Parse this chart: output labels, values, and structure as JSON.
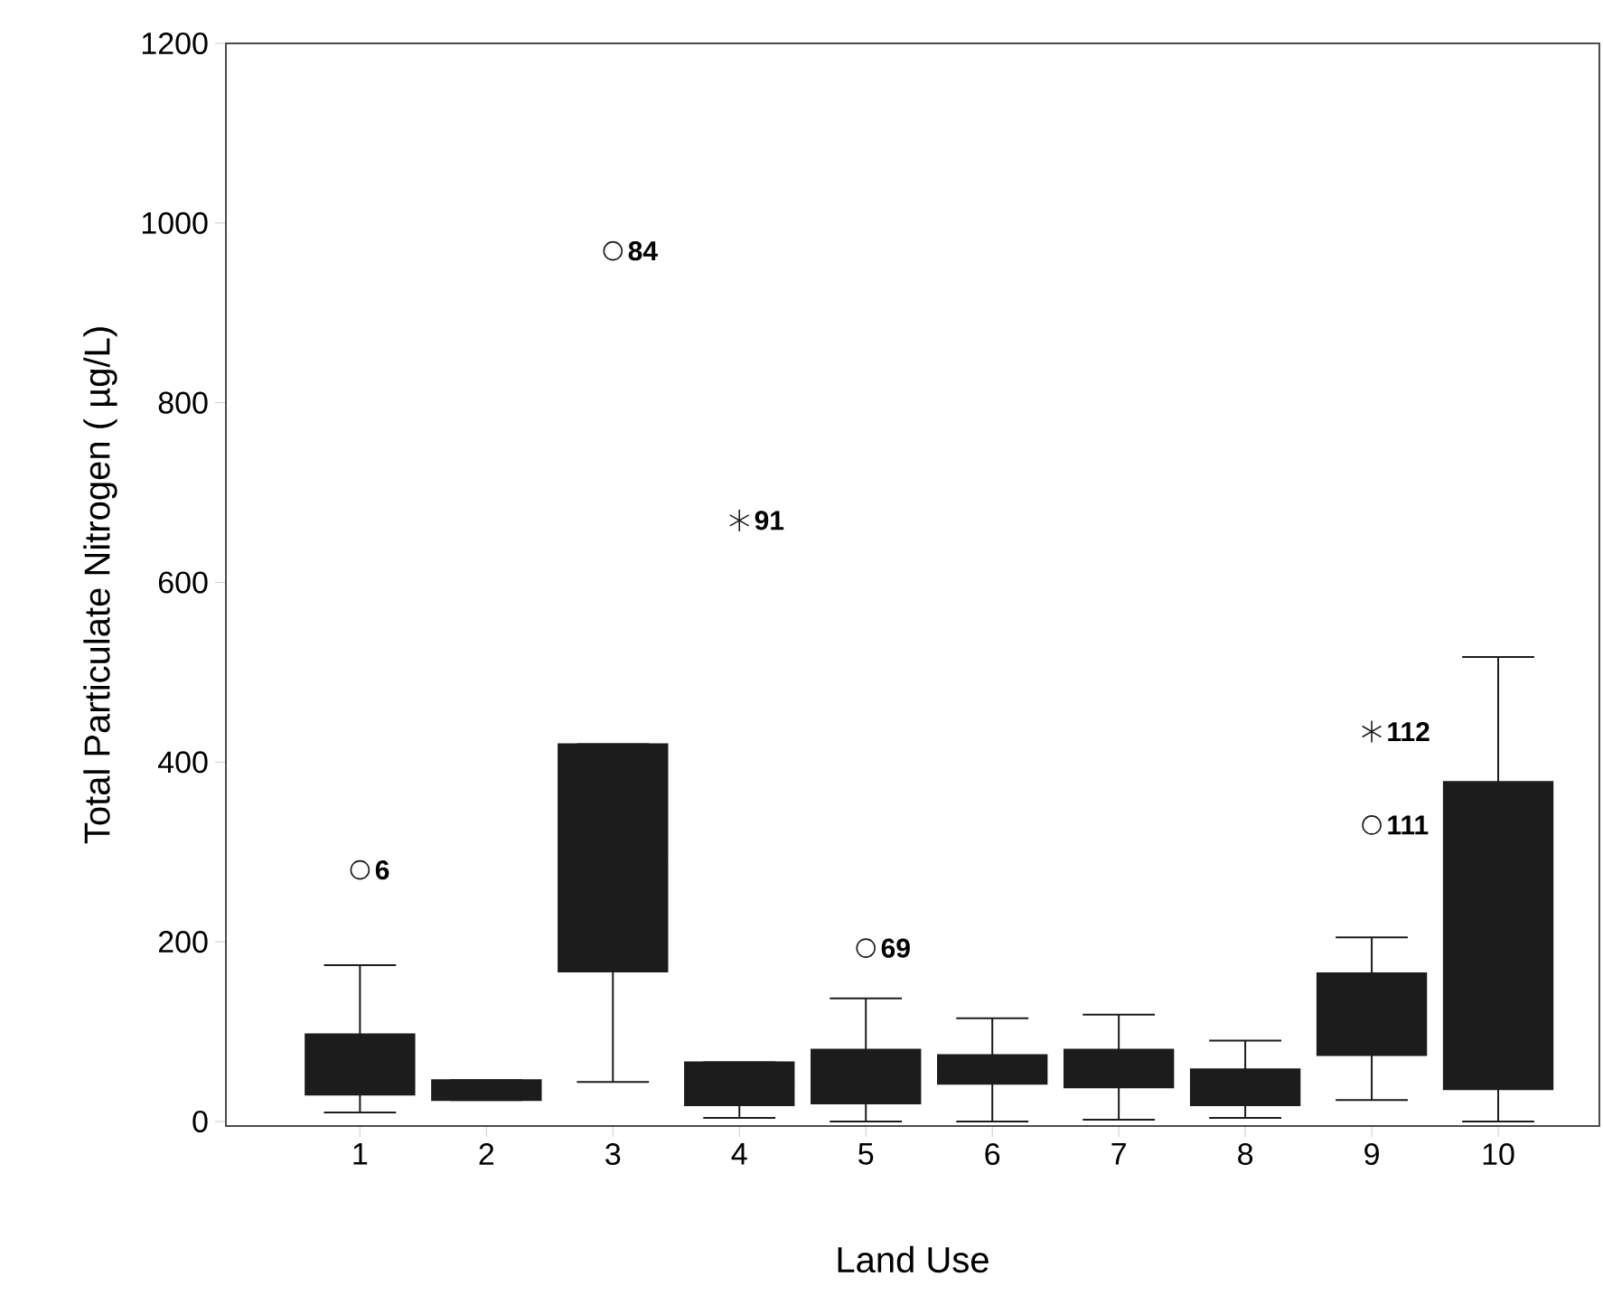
{
  "chart_data": {
    "type": "box",
    "xlabel": "Land Use",
    "ylabel": "Total Particulate Nitrogen ( µg/L)",
    "categories": [
      "1",
      "2",
      "3",
      "4",
      "5",
      "6",
      "7",
      "8",
      "9",
      "10"
    ],
    "color": "#1c1c1c",
    "boxes": [
      {
        "low": 10,
        "q1": 30,
        "median": 60,
        "q3": 97,
        "high": 174
      },
      {
        "low": 24,
        "q1": 24,
        "median": 35,
        "q3": 46,
        "high": 46
      },
      {
        "low": 44,
        "q1": 167,
        "median": 290,
        "q3": 420,
        "high": 420
      },
      {
        "low": 4,
        "q1": 18,
        "median": 40,
        "q3": 66,
        "high": 66
      },
      {
        "low": 0,
        "q1": 20,
        "median": 50,
        "q3": 80,
        "high": 137
      },
      {
        "low": 0,
        "q1": 42,
        "median": 58,
        "q3": 74,
        "high": 115
      },
      {
        "low": 2,
        "q1": 38,
        "median": 60,
        "q3": 80,
        "high": 119
      },
      {
        "low": 4,
        "q1": 18,
        "median": 38,
        "q3": 58,
        "high": 90
      },
      {
        "low": 24,
        "q1": 74,
        "median": 120,
        "q3": 165,
        "high": 205
      },
      {
        "low": 0,
        "q1": 36,
        "median": 200,
        "q3": 378,
        "high": 517
      }
    ],
    "series": [
      {
        "type": "scatter",
        "marker": "circle",
        "color": "#1c1c1c",
        "x": [
          "1",
          "3",
          "5",
          "9"
        ],
        "values": [
          280,
          969,
          193,
          330
        ]
      },
      {
        "type": "scatter",
        "marker": "cross",
        "color": "#1c1c1c",
        "x": [
          "4",
          "9"
        ],
        "values": [
          669,
          434
        ]
      }
    ],
    "annotations": [
      {
        "text": "6",
        "x": "1",
        "y": 280
      },
      {
        "text": "84",
        "x": "3",
        "y": 969
      },
      {
        "text": "91",
        "x": "4",
        "y": 669
      },
      {
        "text": "69",
        "x": "5",
        "y": 193
      },
      {
        "text": "112",
        "x": "9",
        "y": 434
      },
      {
        "text": "111",
        "x": "9",
        "y": 330
      }
    ],
    "ylim": [
      -5,
      1200
    ],
    "yticks": [
      0,
      200,
      400,
      600,
      800,
      1000,
      1200
    ],
    "grid": false
  }
}
